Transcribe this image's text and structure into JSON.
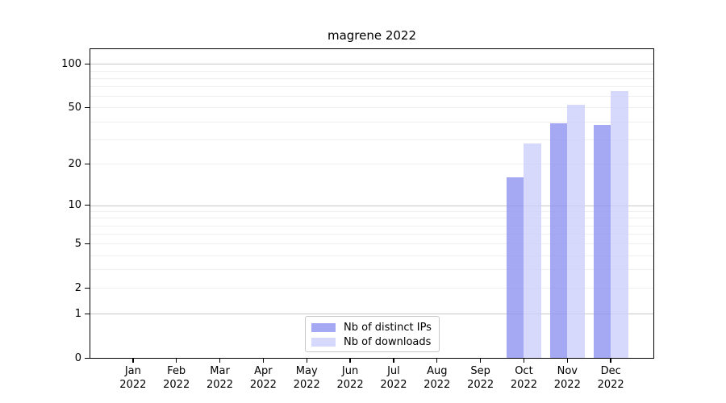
{
  "chart_data": {
    "type": "bar",
    "title": "magrene 2022",
    "year_label": "2022",
    "categories": [
      "Jan 2022",
      "Feb 2022",
      "Mar 2022",
      "Apr 2022",
      "May 2022",
      "Jun 2022",
      "Jul 2022",
      "Aug 2022",
      "Sep 2022",
      "Oct 2022",
      "Nov 2022",
      "Dec 2022"
    ],
    "month_short": [
      "Jan",
      "Feb",
      "Mar",
      "Apr",
      "May",
      "Jun",
      "Jul",
      "Aug",
      "Sep",
      "Oct",
      "Nov",
      "Dec"
    ],
    "series": [
      {
        "name": "Nb of distinct IPs",
        "color": "#8f93f0",
        "values": [
          0,
          0,
          0,
          0,
          0,
          0,
          0,
          0,
          0,
          16,
          39,
          38
        ]
      },
      {
        "name": "Nb of downloads",
        "color": "#ccd0fa",
        "values": [
          0,
          0,
          0,
          0,
          0,
          0,
          0,
          0,
          0,
          28,
          52,
          65
        ]
      }
    ],
    "yscale": "log1p",
    "ylim": [
      0,
      128
    ],
    "yticks": [
      0,
      1,
      2,
      5,
      10,
      20,
      50,
      100
    ],
    "gridlines": {
      "major": [
        1,
        10,
        100
      ],
      "minor": [
        2,
        3,
        4,
        5,
        6,
        7,
        8,
        9,
        20,
        30,
        40,
        50,
        60,
        70,
        80,
        90
      ],
      "major_color": "#c9c9c9",
      "minor_color": "#efefef"
    },
    "grid": true,
    "legend_position": "lower center (inside plot)"
  },
  "legend": {
    "items": [
      {
        "label": "Nb of distinct IPs"
      },
      {
        "label": "Nb of downloads"
      }
    ]
  }
}
